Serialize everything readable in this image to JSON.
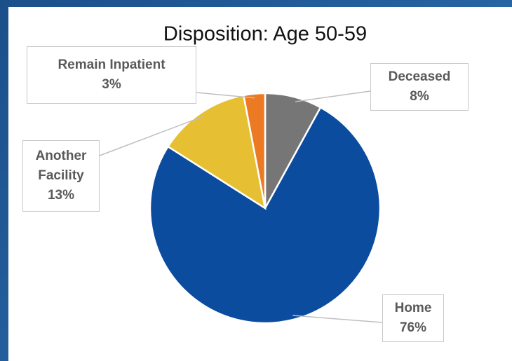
{
  "chart_data": {
    "type": "pie",
    "title": "Disposition: Age 50-59",
    "categories": [
      "Deceased",
      "Home",
      "Another Facility",
      "Remain Inpatient"
    ],
    "values": [
      8,
      76,
      13,
      3
    ],
    "value_labels": [
      "8%",
      "76%",
      "13%",
      "3%"
    ],
    "colors": [
      "#767676",
      "#0b4c9f",
      "#e6c032",
      "#ec7a22"
    ]
  }
}
